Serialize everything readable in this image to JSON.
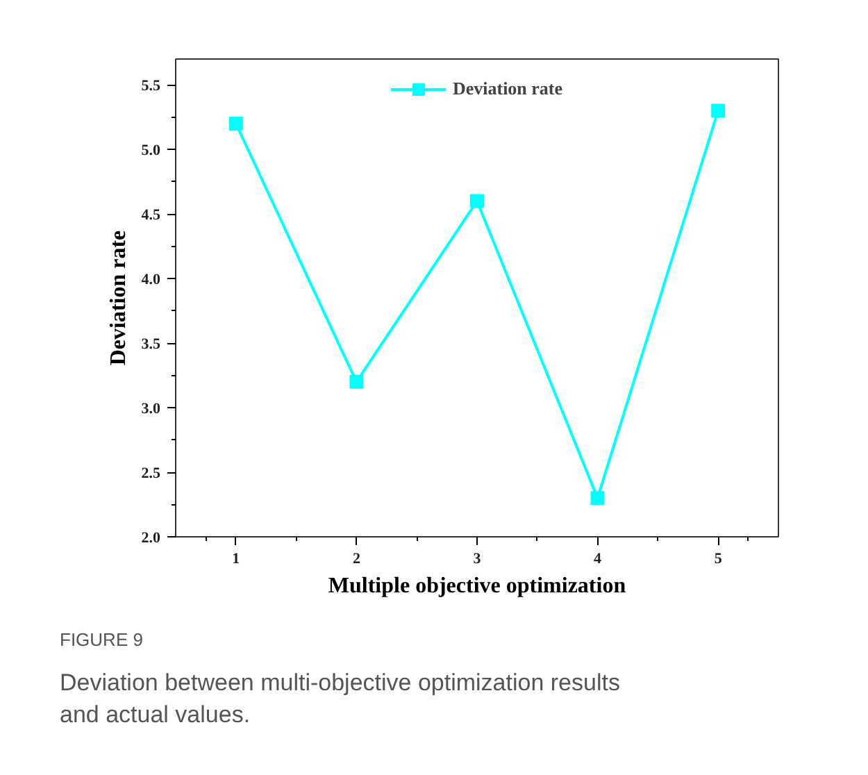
{
  "chart_data": {
    "type": "line",
    "xlabel": "Multiple objective optimization",
    "ylabel": "Deviation rate",
    "x": [
      1,
      2,
      3,
      4,
      5
    ],
    "series": [
      {
        "name": "Deviation rate",
        "color": "#00ffff",
        "values": [
          5.2,
          3.2,
          4.6,
          2.3,
          5.3
        ]
      }
    ],
    "xlim": [
      0.5,
      5.5
    ],
    "xticks": [
      1,
      2,
      3,
      4,
      5
    ],
    "ylim": [
      2.0,
      5.7
    ],
    "yticks": [
      {
        "value": 2.0,
        "label": "2.0"
      },
      {
        "value": 2.5,
        "label": "2.5"
      },
      {
        "value": 3.0,
        "label": "3.0"
      },
      {
        "value": 3.5,
        "label": "3.5"
      },
      {
        "value": 4.0,
        "label": "4.0"
      },
      {
        "value": 4.5,
        "label": "4.5"
      },
      {
        "value": 5.0,
        "label": "5.0"
      },
      {
        "value": 5.5,
        "label": "5.5"
      }
    ],
    "marker": "square",
    "legend": "top",
    "grid": false,
    "annotations": [
      "FIGURE 9",
      "Deviation between multi-objective optimization results and actual values."
    ]
  }
}
